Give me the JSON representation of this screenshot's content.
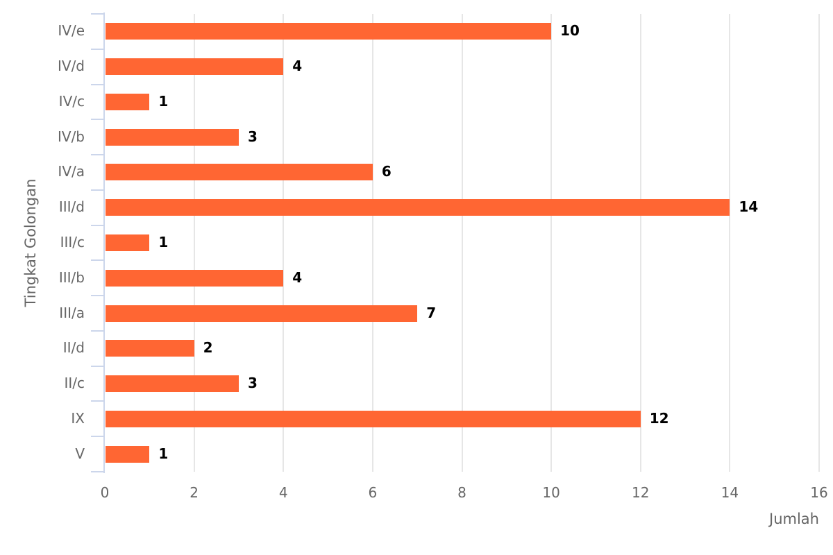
{
  "chart_data": {
    "type": "bar",
    "orientation": "horizontal",
    "title": "",
    "xlabel": "Jumlah",
    "ylabel": "Tingkat Golongan",
    "categories": [
      "IV/e",
      "IV/d",
      "IV/c",
      "IV/b",
      "IV/a",
      "III/d",
      "III/c",
      "III/b",
      "III/a",
      "II/d",
      "II/c",
      "IX",
      "V"
    ],
    "values": [
      10,
      4,
      1,
      3,
      6,
      14,
      1,
      4,
      7,
      2,
      3,
      12,
      1
    ],
    "xlim": [
      0,
      16
    ],
    "xticks": [
      0,
      2,
      4,
      6,
      8,
      10,
      12,
      14,
      16
    ],
    "grid": true,
    "legend": null,
    "data_labels": true,
    "bar_color": "#ff6633"
  },
  "labels": {
    "xticks": [
      "0",
      "2",
      "4",
      "6",
      "8",
      "10",
      "12",
      "14",
      "16"
    ],
    "categories": [
      "IV/e",
      "IV/d",
      "IV/c",
      "IV/b",
      "IV/a",
      "III/d",
      "III/c",
      "III/b",
      "III/a",
      "II/d",
      "II/c",
      "IX",
      "V"
    ],
    "values": [
      "10",
      "4",
      "1",
      "3",
      "6",
      "14",
      "1",
      "4",
      "7",
      "2",
      "3",
      "12",
      "1"
    ],
    "xtitle": "Jumlah",
    "ytitle": "Tingkat Golongan"
  }
}
